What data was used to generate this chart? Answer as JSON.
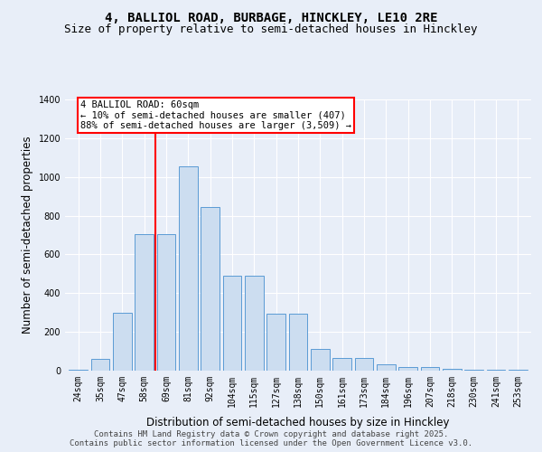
{
  "title_line1": "4, BALLIOL ROAD, BURBAGE, HINCKLEY, LE10 2RE",
  "title_line2": "Size of property relative to semi-detached houses in Hinckley",
  "xlabel": "Distribution of semi-detached houses by size in Hinckley",
  "ylabel": "Number of semi-detached properties",
  "bins": [
    "24sqm",
    "35sqm",
    "47sqm",
    "58sqm",
    "69sqm",
    "81sqm",
    "92sqm",
    "104sqm",
    "115sqm",
    "127sqm",
    "138sqm",
    "150sqm",
    "161sqm",
    "173sqm",
    "184sqm",
    "196sqm",
    "207sqm",
    "218sqm",
    "230sqm",
    "241sqm",
    "253sqm"
  ],
  "bar_heights": [
    5,
    60,
    300,
    705,
    705,
    1055,
    845,
    490,
    490,
    295,
    295,
    110,
    65,
    65,
    35,
    20,
    20,
    10,
    5,
    5,
    5
  ],
  "bar_color": "#ccddf0",
  "bar_edge_color": "#5b9bd5",
  "vline_color": "red",
  "vline_x": 3.5,
  "annotation_text": "4 BALLIOL ROAD: 60sqm\n← 10% of semi-detached houses are smaller (407)\n88% of semi-detached houses are larger (3,509) →",
  "annotation_box_color": "white",
  "annotation_box_edge_color": "red",
  "footer_line1": "Contains HM Land Registry data © Crown copyright and database right 2025.",
  "footer_line2": "Contains public sector information licensed under the Open Government Licence v3.0.",
  "background_color": "#e8eef8",
  "ylim": [
    0,
    1400
  ],
  "yticks": [
    0,
    200,
    400,
    600,
    800,
    1000,
    1200,
    1400
  ],
  "title_fontsize": 10,
  "subtitle_fontsize": 9,
  "axis_label_fontsize": 8.5,
  "tick_fontsize": 7,
  "footer_fontsize": 6.5,
  "annotation_fontsize": 7.5
}
